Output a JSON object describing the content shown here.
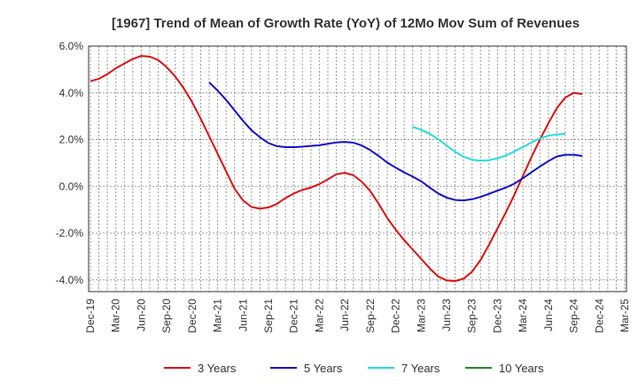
{
  "chart_data": {
    "type": "line",
    "title": "[1967]  Trend of Mean of Growth Rate (YoY) of 12Mo Mov Sum of Revenues",
    "xlabel": "",
    "ylabel": "",
    "ylim": [
      -4.5,
      6.0
    ],
    "yticks": [
      -4.0,
      -2.0,
      0.0,
      2.0,
      4.0,
      6.0
    ],
    "ytick_labels": [
      "-4.0%",
      "-2.0%",
      "0.0%",
      "2.0%",
      "4.0%",
      "6.0%"
    ],
    "xtick_labels": [
      "Dec-19",
      "Mar-20",
      "Jun-20",
      "Sep-20",
      "Dec-20",
      "Mar-21",
      "Jun-21",
      "Sep-21",
      "Dec-21",
      "Mar-22",
      "Jun-22",
      "Sep-22",
      "Dec-22",
      "Mar-23",
      "Jun-23",
      "Sep-23",
      "Dec-23",
      "Mar-24",
      "Jun-24",
      "Sep-24",
      "Dec-24",
      "Mar-25"
    ],
    "grid": true,
    "legend_position": "bottom",
    "series": [
      {
        "name": "3 Years",
        "color": "#dd1111",
        "start_index": 0,
        "values": [
          4.5,
          4.6,
          4.8,
          5.05,
          5.25,
          5.45,
          5.58,
          5.55,
          5.4,
          5.1,
          4.7,
          4.2,
          3.6,
          2.9,
          2.15,
          1.4,
          0.65,
          -0.1,
          -0.6,
          -0.88,
          -0.95,
          -0.9,
          -0.75,
          -0.5,
          -0.3,
          -0.15,
          -0.05,
          0.1,
          0.3,
          0.52,
          0.58,
          0.48,
          0.2,
          -0.2,
          -0.75,
          -1.35,
          -1.85,
          -2.3,
          -2.7,
          -3.1,
          -3.5,
          -3.85,
          -4.02,
          -4.05,
          -3.95,
          -3.65,
          -3.15,
          -2.5,
          -1.8,
          -1.1,
          -0.35,
          0.45,
          1.25,
          2.0,
          2.7,
          3.35,
          3.8,
          4.0,
          3.95
        ]
      },
      {
        "name": "5 Years",
        "color": "#1111cc",
        "start_index": 14,
        "values": [
          4.45,
          4.1,
          3.7,
          3.25,
          2.8,
          2.4,
          2.1,
          1.85,
          1.72,
          1.68,
          1.68,
          1.7,
          1.73,
          1.76,
          1.82,
          1.88,
          1.9,
          1.87,
          1.75,
          1.55,
          1.3,
          1.02,
          0.8,
          0.6,
          0.42,
          0.22,
          -0.05,
          -0.3,
          -0.48,
          -0.58,
          -0.6,
          -0.55,
          -0.45,
          -0.32,
          -0.18,
          -0.05,
          0.12,
          0.35,
          0.6,
          0.85,
          1.08,
          1.28,
          1.35,
          1.35,
          1.3
        ]
      },
      {
        "name": "7 Years",
        "color": "#22dddd",
        "start_index": 38,
        "values": [
          2.55,
          2.42,
          2.25,
          2.02,
          1.75,
          1.48,
          1.27,
          1.14,
          1.1,
          1.12,
          1.2,
          1.32,
          1.5,
          1.68,
          1.88,
          2.05,
          2.17,
          2.22,
          2.25
        ]
      },
      {
        "name": "10 Years",
        "color": "#228822",
        "start_index": 0,
        "values": []
      }
    ]
  }
}
